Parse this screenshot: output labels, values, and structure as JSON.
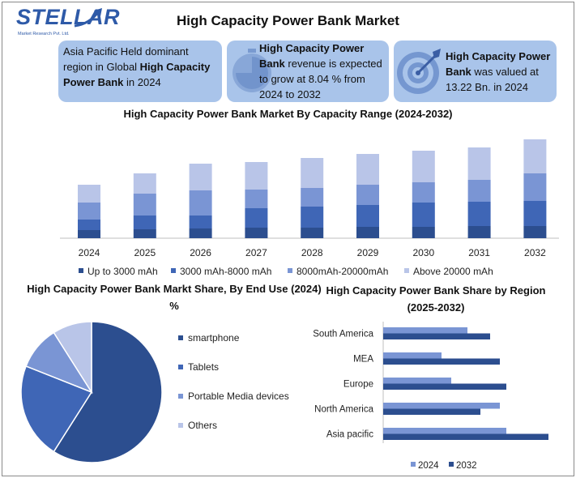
{
  "header": {
    "brand": "STELLAR",
    "brand_sub": "Market Research Pvt. Ltd.",
    "title": "High Capacity Power Bank Market"
  },
  "infoboxes": {
    "box1": {
      "part1": "Asia Pacific Held dominant region in Global ",
      "bold": "High Capacity Power Bank",
      "part2": " in 2024"
    },
    "box2": {
      "bold": "High Capacity Power Bank",
      "part2": " revenue is expected to grow at 8.04 % from 2024 to 2032"
    },
    "box3": {
      "bold": "High Capacity Power Bank",
      "part2": " was valued at 13.22 Bn. in 2024"
    }
  },
  "colors": {
    "s1": "#2c4e8f",
    "s2": "#3f66b6",
    "s3": "#7a95d4",
    "s4": "#b9c5e8",
    "box": "#a9c4ea"
  },
  "chart_data": [
    {
      "type": "bar",
      "stacked": true,
      "title": "High Capacity Power Bank Market By Capacity Range (2024-2032)",
      "categories": [
        "2024",
        "2025",
        "2026",
        "2027",
        "2028",
        "2029",
        "2030",
        "2031",
        "2032"
      ],
      "series": [
        {
          "name": "Up to 3000 mAh",
          "values": [
            10,
            11,
            12,
            13,
            13,
            14,
            14,
            15,
            15
          ]
        },
        {
          "name": "3000 mAh-8000 mAh",
          "values": [
            13,
            17,
            16,
            24,
            26,
            27,
            30,
            30,
            31
          ]
        },
        {
          "name": "8000mAh-20000mAh",
          "values": [
            21,
            27,
            31,
            23,
            23,
            25,
            25,
            27,
            34
          ]
        },
        {
          "name": "Above 20000 mAh",
          "values": [
            22,
            25,
            33,
            34,
            37,
            38,
            39,
            40,
            42
          ]
        }
      ],
      "legend": "bottom"
    },
    {
      "type": "pie",
      "title": "High Capacity Power Bank Markt Share, By End Use (2024) %",
      "labels": [
        "smartphone",
        "Tablets",
        "Portable Media devices",
        "Others"
      ],
      "values": [
        59,
        22,
        10,
        9
      ],
      "legend": "right"
    },
    {
      "type": "bar",
      "orientation": "horizontal",
      "title": "High Capacity Power Bank Share by Region (2025-2032)",
      "categories": [
        "South America",
        "MEA",
        "Europe",
        "North America",
        "Asia pacific"
      ],
      "series": [
        {
          "name": "2024",
          "values": [
            26,
            18,
            21,
            36,
            38
          ]
        },
        {
          "name": "2032",
          "values": [
            33,
            36,
            38,
            30,
            51
          ]
        }
      ],
      "legend": "bottom"
    }
  ]
}
